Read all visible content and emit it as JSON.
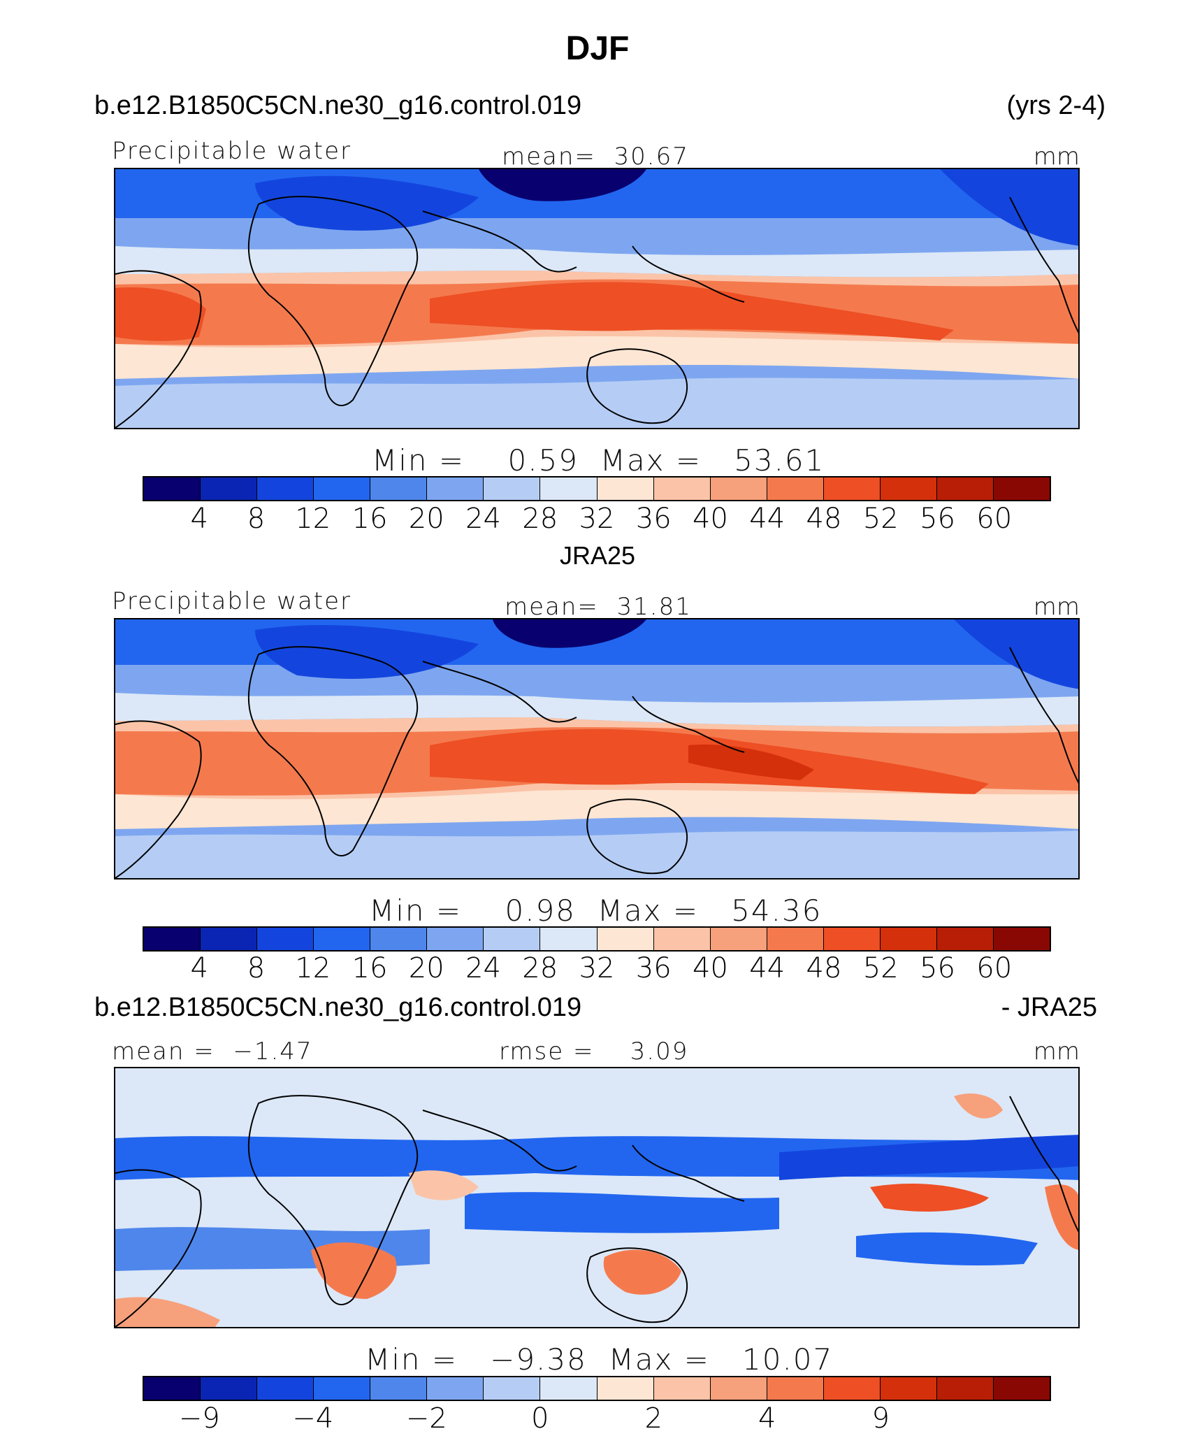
{
  "figure": {
    "title": "DJF",
    "case_name": "b.e12.B1850C5CN.ne30_g16.control.019",
    "years": "(yrs 2-4)",
    "reference_name": "JRA25",
    "diff_right": "- JRA25"
  },
  "colors": [
    "#08006e",
    "#0a25b3",
    "#1345de",
    "#2266f0",
    "#4f86ec",
    "#7ea6f0",
    "#b5cdf5",
    "#dce8f7",
    "#fde6d3",
    "#fbc4a8",
    "#f7a07c",
    "#f47a4e",
    "#ee4f24",
    "#d4300b",
    "#b81e06",
    "#8a0803"
  ],
  "chart_data": [
    {
      "type": "heatmap",
      "panel": "model",
      "variable": "Precipitable water",
      "units": "mm",
      "mean_label": "mean=",
      "mean": "30.67",
      "min_label": "Min =",
      "min": "0.59",
      "max_label": "Max =",
      "max": "53.61",
      "colorbar_ticks": [
        "4",
        "8",
        "12",
        "16",
        "20",
        "24",
        "28",
        "32",
        "36",
        "40",
        "44",
        "48",
        "52",
        "56",
        "60"
      ]
    },
    {
      "type": "heatmap",
      "panel": "reference",
      "variable": "Precipitable water",
      "units": "mm",
      "mean_label": "mean=",
      "mean": "31.81",
      "min_label": "Min =",
      "min": "0.98",
      "max_label": "Max =",
      "max": "54.36",
      "colorbar_ticks": [
        "4",
        "8",
        "12",
        "16",
        "20",
        "24",
        "28",
        "32",
        "36",
        "40",
        "44",
        "48",
        "52",
        "56",
        "60"
      ]
    },
    {
      "type": "heatmap",
      "panel": "difference",
      "units": "mm",
      "mean_label": "mean =",
      "mean": "−1.47",
      "rmse_label": "rmse =",
      "rmse": "3.09",
      "min_label": "Min =",
      "min": "−9.38",
      "max_label": "Max =",
      "max": "10.07",
      "colorbar_ticks": [
        "−9",
        "",
        "−4",
        "",
        "−2",
        "",
        "0",
        "",
        "2",
        "",
        "4",
        "",
        "9",
        "",
        ""
      ]
    }
  ]
}
